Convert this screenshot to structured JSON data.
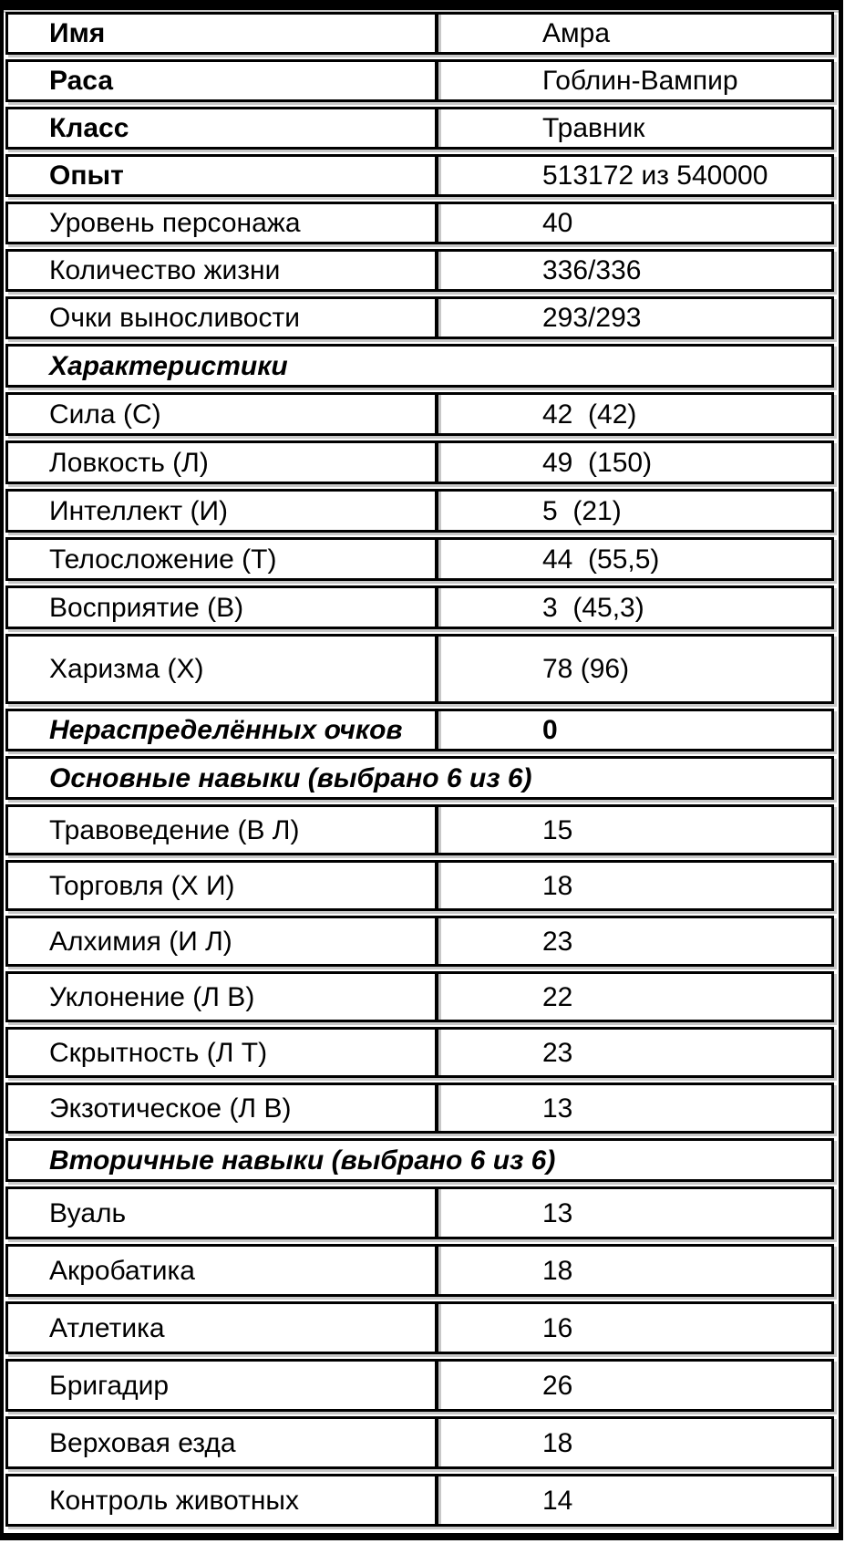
{
  "colors": {
    "border": "#000000",
    "shadow": "#c8c8c8",
    "background": "#ffffff",
    "text": "#000000"
  },
  "table": {
    "rows": [
      {
        "type": "info-bold",
        "label": "Имя",
        "value": "Амра"
      },
      {
        "type": "info-bold",
        "label": "Раса",
        "value": "Гоблин-Вампир"
      },
      {
        "type": "info-bold",
        "label": "Класс",
        "value": "Травник"
      },
      {
        "type": "info-bold",
        "label": "Опыт",
        "value": "513172 из 540000"
      },
      {
        "type": "info",
        "label": "Уровень персонажа",
        "value": "40"
      },
      {
        "type": "info",
        "label": "Количество жизни",
        "value": "336/336"
      },
      {
        "type": "info",
        "label": "Очки выносливости",
        "value": "293/293"
      },
      {
        "type": "section",
        "label": "Характеристики"
      },
      {
        "type": "stat",
        "label": "Сила (С)",
        "value": "42  (42)"
      },
      {
        "type": "stat",
        "label": "Ловкость (Л)",
        "value": "49  (150)"
      },
      {
        "type": "stat",
        "label": "Интеллект (И)",
        "value": "5  (21)"
      },
      {
        "type": "stat",
        "label": "Телосложение (Т)",
        "value": "44  (55,5)"
      },
      {
        "type": "stat",
        "label": "Восприятие (В)",
        "value": "3  (45,3)"
      },
      {
        "type": "stat-tall",
        "label": "Харизма (Х)",
        "value": "78 (96)"
      },
      {
        "type": "unspent",
        "label": "Нераспределённых очков",
        "value": "0"
      },
      {
        "type": "section",
        "label": "Основные навыки (выбрано 6 из 6)"
      },
      {
        "type": "skill-primary",
        "label": "Травоведение (В Л)",
        "value": "15"
      },
      {
        "type": "skill-primary",
        "label": "Торговля (Х И)",
        "value": "18"
      },
      {
        "type": "skill-primary",
        "label": "Алхимия (И Л)",
        "value": "23"
      },
      {
        "type": "skill-primary",
        "label": "Уклонение (Л В)",
        "value": "22"
      },
      {
        "type": "skill-primary",
        "label": "Скрытность (Л Т)",
        "value": "23"
      },
      {
        "type": "skill-primary",
        "label": "Экзотическое (Л В)",
        "value": "13"
      },
      {
        "type": "section",
        "label": "Вторичные навыки (выбрано 6 из 6)"
      },
      {
        "type": "skill-secondary",
        "label": "Вуаль",
        "value": "13"
      },
      {
        "type": "skill-secondary",
        "label": "Акробатика",
        "value": "18"
      },
      {
        "type": "skill-secondary",
        "label": "Атлетика",
        "value": "16"
      },
      {
        "type": "skill-secondary",
        "label": "Бригадир",
        "value": "26"
      },
      {
        "type": "skill-secondary",
        "label": "Верховая езда",
        "value": "18"
      },
      {
        "type": "skill-secondary",
        "label": "Контроль животных",
        "value": "14"
      }
    ]
  }
}
